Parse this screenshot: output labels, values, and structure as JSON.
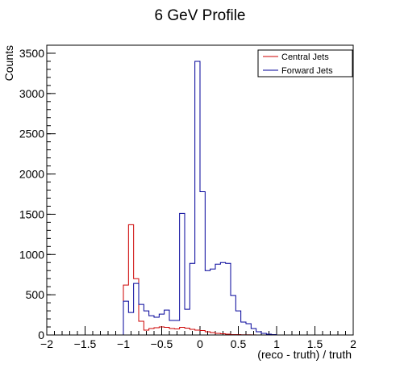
{
  "chart_data": {
    "type": "step-histogram",
    "title": "6 GeV Profile",
    "xlabel": "(reco - truth) / truth",
    "ylabel": "Counts",
    "xlim": [
      -2,
      2
    ],
    "ylim": [
      0,
      3600
    ],
    "xticks": [
      -2,
      -1.5,
      -1,
      -0.5,
      0,
      0.5,
      1,
      1.5,
      2
    ],
    "xtick_labels": [
      "−2",
      "−1.5",
      "−1",
      "−0.5",
      "0",
      "0.5",
      "1",
      "1.5",
      "2"
    ],
    "yticks": [
      0,
      500,
      1000,
      1500,
      2000,
      2500,
      3000,
      3500
    ],
    "ytick_labels": [
      "0",
      "500",
      "1000",
      "1500",
      "2000",
      "2500",
      "3000",
      "3500"
    ],
    "bin_edges": [
      -1.0,
      -0.9333,
      -0.8667,
      -0.8,
      -0.7333,
      -0.6667,
      -0.6,
      -0.5333,
      -0.4667,
      -0.4,
      -0.3333,
      -0.2667,
      -0.2,
      -0.1333,
      -0.0667,
      0.0,
      0.0667,
      0.1333,
      0.2,
      0.2667,
      0.3333,
      0.4,
      0.4667,
      0.5333,
      0.6,
      0.6667,
      0.7333,
      0.8,
      0.8667,
      0.9333,
      1.0
    ],
    "series": [
      {
        "name": "Central Jets",
        "color": "#cc0000",
        "values": [
          620,
          1370,
          700,
          170,
          60,
          80,
          90,
          100,
          95,
          80,
          75,
          95,
          85,
          70,
          60,
          55,
          40,
          30,
          20,
          15,
          10,
          5,
          5,
          3,
          2,
          1,
          0,
          0,
          0,
          0
        ]
      },
      {
        "name": "Forward Jets",
        "color": "#000099",
        "values": [
          420,
          280,
          640,
          380,
          300,
          240,
          220,
          260,
          310,
          180,
          180,
          1510,
          320,
          890,
          3400,
          1780,
          800,
          820,
          880,
          900,
          890,
          490,
          300,
          160,
          140,
          80,
          40,
          20,
          10,
          5
        ]
      }
    ],
    "legend": {
      "placement": "top-right",
      "entries": [
        "Central Jets",
        "Forward Jets"
      ]
    },
    "grid": false
  }
}
